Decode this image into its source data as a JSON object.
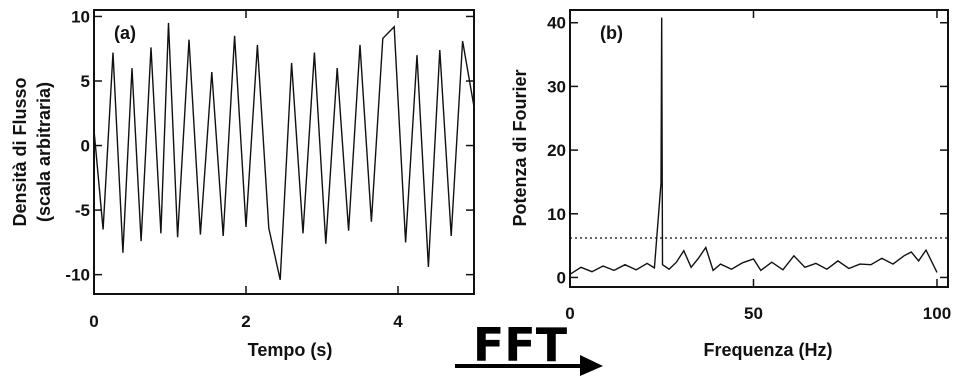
{
  "arrow_label": "FFT",
  "chart_data": [
    {
      "type": "line",
      "panel": "(a)",
      "title": "",
      "xlabel": "Tempo (s)",
      "ylabel_line1": "Densità di Flusso",
      "ylabel_line2": "(scala arbitraria)",
      "xlim": [
        0,
        5
      ],
      "ylim": [
        -11.5,
        10.5
      ],
      "xticks": [
        0,
        2,
        4
      ],
      "yticks": [
        10,
        5,
        0,
        -5,
        -10
      ],
      "series": [
        {
          "color": "#111111",
          "x": [
            0.0,
            0.12,
            0.25,
            0.38,
            0.5,
            0.62,
            0.75,
            0.88,
            0.98,
            1.1,
            1.25,
            1.4,
            1.55,
            1.7,
            1.85,
            2.0,
            2.15,
            2.3,
            2.45,
            2.6,
            2.75,
            2.9,
            3.05,
            3.2,
            3.35,
            3.5,
            3.65,
            3.8,
            3.95,
            4.1,
            4.25,
            4.4,
            4.55,
            4.7,
            4.85,
            5.0
          ],
          "y": [
            1.2,
            -6.5,
            7.2,
            -8.3,
            6.0,
            -7.4,
            7.6,
            -6.8,
            9.5,
            -7.1,
            8.2,
            -6.9,
            5.7,
            -7.0,
            8.5,
            -6.3,
            7.8,
            -6.4,
            -10.4,
            6.4,
            -6.8,
            7.2,
            -7.6,
            6.0,
            -6.6,
            7.8,
            -5.9,
            8.3,
            9.2,
            -7.5,
            7.0,
            -9.4,
            7.4,
            -7.0,
            8.1,
            3.0
          ]
        }
      ]
    },
    {
      "type": "line",
      "panel": "(b)",
      "title": "",
      "xlabel": "Frequenza (Hz)",
      "ylabel": "Potenza di Fourier",
      "xlim": [
        0,
        103
      ],
      "ylim": [
        -1.5,
        42
      ],
      "xticks": [
        0,
        50,
        100
      ],
      "yticks": [
        40,
        30,
        20,
        10,
        0
      ],
      "threshold": 6.2,
      "series": [
        {
          "color": "#111111",
          "x": [
            0,
            3,
            6,
            9,
            12,
            15,
            18,
            21,
            23,
            24.8,
            25,
            25.2,
            27,
            29,
            31,
            33,
            35,
            37,
            39,
            41,
            44,
            47,
            50,
            52,
            55,
            58,
            61,
            64,
            67,
            70,
            73,
            76,
            79,
            82,
            85,
            88,
            91,
            93,
            95,
            97,
            100
          ],
          "y": [
            0.5,
            1.6,
            0.9,
            1.8,
            1.1,
            2.0,
            1.2,
            2.2,
            1.5,
            14.8,
            40.8,
            2.0,
            1.3,
            2.4,
            4.2,
            1.6,
            3.0,
            4.7,
            1.1,
            2.1,
            1.3,
            2.3,
            2.9,
            1.1,
            2.4,
            1.2,
            3.4,
            1.6,
            2.2,
            1.3,
            2.6,
            1.4,
            2.1,
            2.0,
            3.0,
            2.1,
            3.4,
            4.0,
            2.6,
            4.3,
            0.8
          ]
        }
      ]
    }
  ]
}
